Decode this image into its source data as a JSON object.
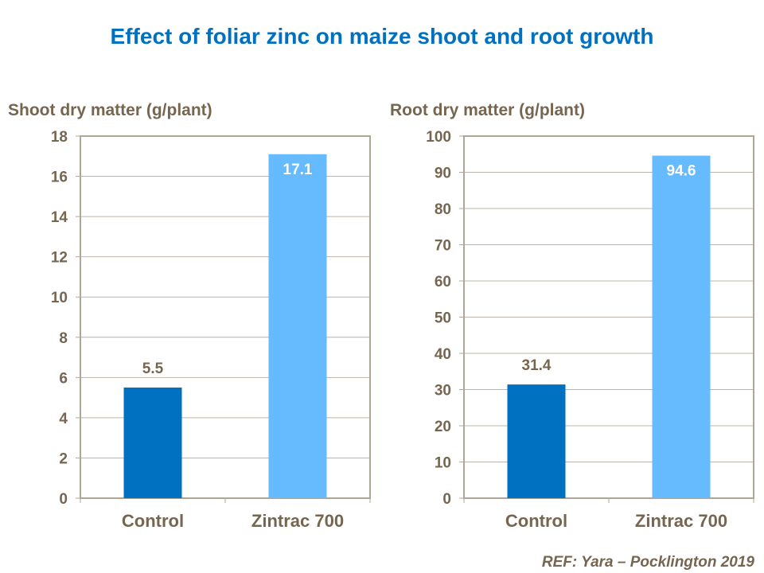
{
  "title": "Effect of foliar zinc on maize shoot and root growth",
  "reference": "REF: Yara – Pocklington 2019",
  "colors": {
    "title": "#0070c0",
    "text": "#76654f",
    "control": "#0070c0",
    "treatment": "#66bbff",
    "grid": "#bcb4aa",
    "frame": "#b0a698"
  },
  "chart_data": [
    {
      "type": "bar",
      "title": "",
      "ylabel": "Shoot dry matter (g/plant)",
      "xlabel": "",
      "categories": [
        "Control",
        "Zintrac 700"
      ],
      "values": [
        5.5,
        17.1
      ],
      "data_labels": [
        "5.5",
        "17.1"
      ],
      "ylim": [
        0,
        18
      ],
      "yticks": [
        0,
        2,
        4,
        6,
        8,
        10,
        12,
        14,
        16,
        18
      ],
      "grid": true,
      "legend": "none"
    },
    {
      "type": "bar",
      "title": "",
      "ylabel": "Root dry matter (g/plant)",
      "xlabel": "",
      "categories": [
        "Control",
        "Zintrac 700"
      ],
      "values": [
        31.4,
        94.6
      ],
      "data_labels": [
        "31.4",
        "94.6"
      ],
      "ylim": [
        0,
        100
      ],
      "yticks": [
        0,
        10,
        20,
        30,
        40,
        50,
        60,
        70,
        80,
        90,
        100
      ],
      "grid": true,
      "legend": "none"
    }
  ]
}
